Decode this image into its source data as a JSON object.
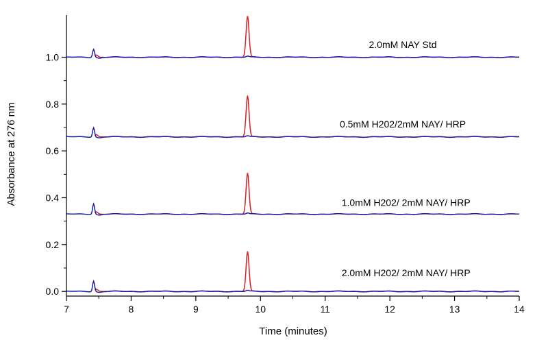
{
  "chart_data": {
    "type": "line",
    "title": "",
    "xlabel": "Time (minutes)",
    "ylabel": "Absorbance at 276 nm",
    "xlim": [
      7,
      14
    ],
    "ylim": [
      -0.02,
      1.18
    ],
    "xticks": [
      7,
      8,
      9,
      10,
      11,
      12,
      13,
      14
    ],
    "yticks": [
      0.0,
      0.2,
      0.4,
      0.6,
      0.8,
      1.0
    ],
    "ytick_labels": [
      "0.0",
      "0.2",
      "0.4",
      "0.6",
      "0.8",
      "1.0"
    ],
    "grid": false,
    "peaks": {
      "small_peak_time": 7.42,
      "large_peak_time": 9.8
    },
    "traces": [
      {
        "label": "2.0mM NAY Std",
        "baseline": 1.0,
        "small_peak_height": 0.035,
        "large_peak_height": 0.175,
        "blue_large_peak_height": 0.004,
        "label_pos": [
          12.2,
          1.04
        ]
      },
      {
        "label": "0.5mM H202/2mM NAY/ HRP",
        "baseline": 0.66,
        "small_peak_height": 0.04,
        "large_peak_height": 0.175,
        "blue_large_peak_height": 0.004,
        "label_pos": [
          12.2,
          0.7
        ]
      },
      {
        "label": "1.0mM H202/ 2mM NAY/ HRP",
        "baseline": 0.33,
        "small_peak_height": 0.045,
        "large_peak_height": 0.175,
        "blue_large_peak_height": 0.004,
        "label_pos": [
          12.25,
          0.365
        ]
      },
      {
        "label": "2.0mM H202/ 2mM NAY/ HRP",
        "baseline": 0.0,
        "small_peak_height": 0.045,
        "large_peak_height": 0.17,
        "blue_large_peak_height": 0.004,
        "label_pos": [
          12.25,
          0.065
        ]
      }
    ],
    "series": [
      {
        "name": "red-trace",
        "color": "#d42020"
      },
      {
        "name": "blue-trace",
        "color": "#1a1aa8"
      }
    ]
  }
}
